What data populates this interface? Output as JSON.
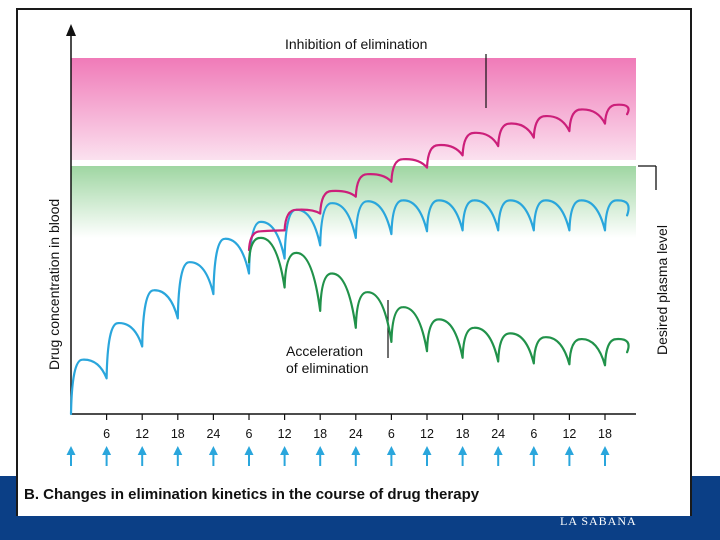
{
  "chart_data": {
    "type": "line",
    "title": "B. Changes in elimination kinetics in the course of drug therapy",
    "ylabel": "Drug concentration in blood",
    "xlabel": "",
    "x_tick_labels": [
      "6",
      "12",
      "18",
      "24",
      "6",
      "12",
      "18",
      "24",
      "6",
      "12",
      "18",
      "24",
      "6",
      "12",
      "18"
    ],
    "dose_marker_count": 16,
    "bands": [
      {
        "name": "Inhibition zone",
        "color_top": "#f07ab8",
        "color_bottom": "#fbe1ef"
      },
      {
        "name": "Desired plasma level",
        "color_top": "#9fd6a2",
        "color_bottom": "#ffffff"
      }
    ],
    "annotations": {
      "inhibition": "Inhibition of elimination",
      "acceleration_line1": "Acceleration",
      "acceleration_line2": "of elimination",
      "desired": "Desired plasma level"
    },
    "series": [
      {
        "name": "Normal elimination",
        "color": "#2aa6dc",
        "peaks": [
          0.58,
          0.97,
          1.32,
          1.62,
          1.87,
          2.05,
          2.18,
          2.25,
          2.27,
          2.28,
          2.28,
          2.28,
          2.28,
          2.28,
          2.28,
          2.28
        ],
        "troughs": [
          0.0,
          0.38,
          0.72,
          1.02,
          1.28,
          1.5,
          1.66,
          1.8,
          1.88,
          1.92,
          1.95,
          1.96,
          1.96,
          1.96,
          1.96,
          1.96
        ]
      },
      {
        "name": "Inhibition of elimination",
        "color": "#cc1f7a",
        "start_interval": 5,
        "peaks": [
          1.95,
          2.18,
          2.38,
          2.56,
          2.72,
          2.87,
          3.0,
          3.1,
          3.18,
          3.25,
          3.3
        ],
        "troughs": [
          1.75,
          1.96,
          2.14,
          2.32,
          2.48,
          2.63,
          2.76,
          2.86,
          2.95,
          3.02,
          3.1
        ]
      },
      {
        "name": "Acceleration of elimination",
        "color": "#21924a",
        "start_interval": 5,
        "peaks": [
          1.88,
          1.72,
          1.5,
          1.3,
          1.14,
          1.01,
          0.92,
          0.86,
          0.82,
          0.8,
          0.8
        ],
        "troughs": [
          1.62,
          1.35,
          1.1,
          0.92,
          0.77,
          0.67,
          0.6,
          0.56,
          0.54,
          0.53,
          0.52
        ]
      }
    ],
    "ylim": [
      0,
      3.8
    ],
    "colors": {
      "arrow": "#2aa6dc",
      "axis": "#111111"
    }
  },
  "caption": "B. Changes in elimination kinetics in the course of drug therapy",
  "logo_text": "LA SABANA"
}
